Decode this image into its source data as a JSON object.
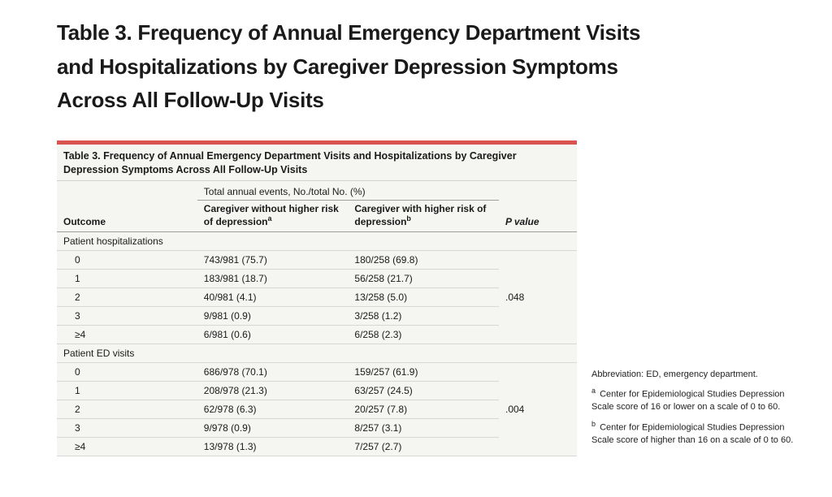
{
  "page_title_prefix": "Table 3.",
  "page_title_rest": "  Frequency of Annual Emergency Department Visits and Hospitalizations by Caregiver Depression Symptoms Across All Follow-Up Visits",
  "table": {
    "top_bar_color": "#d9534f",
    "caption": "Table 3. Frequency of Annual Emergency Department Visits and Hospitalizations by Caregiver Depression Symptoms Across All Follow-Up Visits",
    "spanning_header": "Total annual events, No./total No. (%)",
    "columns": {
      "outcome": "Outcome",
      "without": "Caregiver without higher risk of depression",
      "without_sup": "a",
      "with": "Caregiver with higher risk of depression",
      "with_sup": "b",
      "pvalue": "P value"
    },
    "groups": [
      {
        "label": "Patient hospitalizations",
        "pvalue": ".048",
        "rows": [
          {
            "level": "0",
            "without": "743/981 (75.7)",
            "with": "180/258 (69.8)"
          },
          {
            "level": "1",
            "without": "183/981 (18.7)",
            "with": "56/258 (21.7)"
          },
          {
            "level": "2",
            "without": "40/981 (4.1)",
            "with": "13/258 (5.0)"
          },
          {
            "level": "3",
            "without": "9/981 (0.9)",
            "with": "3/258 (1.2)"
          },
          {
            "level": "≥4",
            "without": "6/981 (0.6)",
            "with": "6/258 (2.3)"
          }
        ]
      },
      {
        "label": "Patient ED visits",
        "pvalue": ".004",
        "rows": [
          {
            "level": "0",
            "without": "686/978 (70.1)",
            "with": "159/257 (61.9)"
          },
          {
            "level": "1",
            "without": "208/978 (21.3)",
            "with": "63/257 (24.5)"
          },
          {
            "level": "2",
            "without": "62/978 (6.3)",
            "with": "20/257 (7.8)"
          },
          {
            "level": "3",
            "without": "9/978 (0.9)",
            "with": "8/257 (3.1)"
          },
          {
            "level": "≥4",
            "without": "13/978 (1.3)",
            "with": "7/257 (2.7)"
          }
        ]
      }
    ]
  },
  "footnotes": {
    "abbrev_label": "Abbreviation:",
    "abbrev_text": " ED, emergency department.",
    "note_a_marker": "a",
    "note_a": " Center for Epidemiological Studies Depression Scale score of 16 or lower on a scale of 0 to 60.",
    "note_b_marker": "b",
    "note_b": " Center for Epidemiological Studies Depression Scale score of higher than 16 on a scale of 0 to 60."
  }
}
